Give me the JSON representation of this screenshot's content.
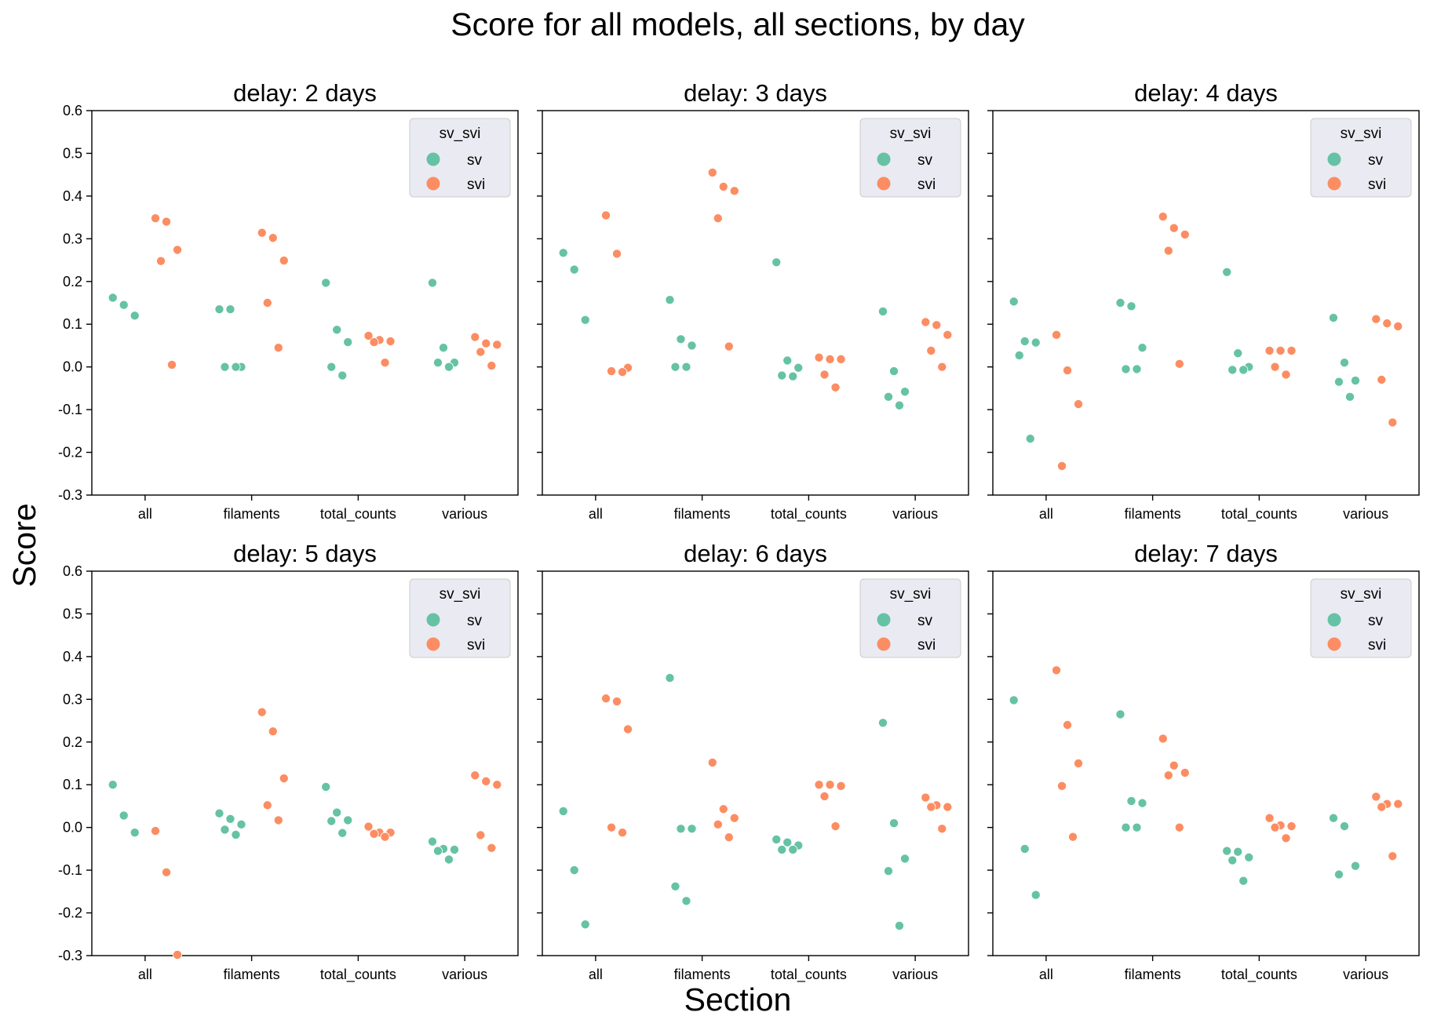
{
  "figure": {
    "title": "Score for all models, all sections, by day",
    "xlabel": "Section",
    "ylabel": "Score"
  },
  "legend": {
    "title": "sv_svi",
    "entries": [
      "sv",
      "svi"
    ],
    "placement": "top-right"
  },
  "colors": {
    "sv": "#66c2a5",
    "svi": "#fc8d62",
    "legend_bg": "#eaeaf2",
    "legend_edge": "#cccccc"
  },
  "chart_data": [
    {
      "type": "scatter",
      "title": "delay: 2 days",
      "categories": [
        "all",
        "filaments",
        "total_counts",
        "various"
      ],
      "ylim": [
        -0.3,
        0.6
      ],
      "yticks": [
        "-0.3",
        "-0.2",
        "-0.1",
        "0.0",
        "0.1",
        "0.2",
        "0.3",
        "0.4",
        "0.5",
        "0.6"
      ],
      "grid": false,
      "series": [
        {
          "name": "sv",
          "values": [
            [
              0.162,
              0.145,
              0.12
            ],
            [
              0.135,
              0.135,
              0.0,
              0.0,
              0.0
            ],
            [
              0.197,
              0.087,
              0.058,
              0.0,
              -0.02
            ],
            [
              0.197,
              0.045,
              0.01,
              0.01,
              0.0
            ]
          ]
        },
        {
          "name": "svi",
          "values": [
            [
              0.348,
              0.34,
              0.274,
              0.248,
              0.005
            ],
            [
              0.314,
              0.302,
              0.249,
              0.15,
              0.045
            ],
            [
              0.073,
              0.063,
              0.06,
              0.058,
              0.01
            ],
            [
              0.07,
              0.055,
              0.052,
              0.035,
              0.003
            ]
          ]
        }
      ]
    },
    {
      "type": "scatter",
      "title": "delay: 3 days",
      "categories": [
        "all",
        "filaments",
        "total_counts",
        "various"
      ],
      "ylim": [
        -0.3,
        0.6
      ],
      "yticks": [
        "-0.3",
        "-0.2",
        "-0.1",
        "0.0",
        "0.1",
        "0.2",
        "0.3",
        "0.4",
        "0.5",
        "0.6"
      ],
      "grid": false,
      "series": [
        {
          "name": "sv",
          "values": [
            [
              0.267,
              0.228,
              0.11
            ],
            [
              0.157,
              0.065,
              0.05,
              0.0,
              0.0
            ],
            [
              0.245,
              0.015,
              -0.002,
              -0.02,
              -0.022
            ],
            [
              0.13,
              -0.01,
              -0.058,
              -0.07,
              -0.09
            ]
          ]
        },
        {
          "name": "svi",
          "values": [
            [
              0.355,
              0.265,
              -0.002,
              -0.01,
              -0.012
            ],
            [
              0.455,
              0.422,
              0.412,
              0.348,
              0.048
            ],
            [
              0.022,
              0.018,
              0.018,
              -0.018,
              -0.048
            ],
            [
              0.105,
              0.098,
              0.075,
              0.038,
              0.0
            ]
          ]
        }
      ]
    },
    {
      "type": "scatter",
      "title": "delay: 4 days",
      "categories": [
        "all",
        "filaments",
        "total_counts",
        "various"
      ],
      "ylim": [
        -0.3,
        0.6
      ],
      "yticks": [
        "-0.3",
        "-0.2",
        "-0.1",
        "0.0",
        "0.1",
        "0.2",
        "0.3",
        "0.4",
        "0.5",
        "0.6"
      ],
      "grid": false,
      "series": [
        {
          "name": "sv",
          "values": [
            [
              0.153,
              0.06,
              0.057,
              0.027,
              -0.168
            ],
            [
              0.15,
              0.142,
              0.045,
              -0.005,
              -0.005
            ],
            [
              0.222,
              0.032,
              0.0,
              -0.007,
              -0.007
            ],
            [
              0.115,
              0.01,
              -0.032,
              -0.035,
              -0.07
            ]
          ]
        },
        {
          "name": "svi",
          "values": [
            [
              0.075,
              -0.008,
              -0.087,
              -0.232
            ],
            [
              0.352,
              0.325,
              0.31,
              0.272,
              0.007
            ],
            [
              0.038,
              0.038,
              0.038,
              0.0,
              -0.018
            ],
            [
              0.112,
              0.102,
              0.095,
              -0.03,
              -0.13
            ]
          ]
        }
      ]
    },
    {
      "type": "scatter",
      "title": "delay: 5 days",
      "categories": [
        "all",
        "filaments",
        "total_counts",
        "various"
      ],
      "ylim": [
        -0.3,
        0.6
      ],
      "yticks": [
        "-0.3",
        "-0.2",
        "-0.1",
        "0.0",
        "0.1",
        "0.2",
        "0.3",
        "0.4",
        "0.5",
        "0.6"
      ],
      "grid": false,
      "series": [
        {
          "name": "sv",
          "values": [
            [
              0.1,
              0.028,
              -0.012
            ],
            [
              0.033,
              0.02,
              0.007,
              -0.005,
              -0.017
            ],
            [
              0.095,
              0.035,
              0.017,
              0.015,
              -0.013
            ],
            [
              -0.033,
              -0.05,
              -0.052,
              -0.055,
              -0.075
            ]
          ]
        },
        {
          "name": "svi",
          "values": [
            [
              -0.008,
              -0.105,
              -0.298
            ],
            [
              0.27,
              0.225,
              0.115,
              0.052,
              0.017
            ],
            [
              0.002,
              -0.012,
              -0.012,
              -0.015,
              -0.022
            ],
            [
              0.122,
              0.108,
              0.1,
              -0.018,
              -0.048
            ]
          ]
        }
      ]
    },
    {
      "type": "scatter",
      "title": "delay: 6 days",
      "categories": [
        "all",
        "filaments",
        "total_counts",
        "various"
      ],
      "ylim": [
        -0.3,
        0.6
      ],
      "yticks": [
        "-0.3",
        "-0.2",
        "-0.1",
        "0.0",
        "0.1",
        "0.2",
        "0.3",
        "0.4",
        "0.5",
        "0.6"
      ],
      "grid": false,
      "series": [
        {
          "name": "sv",
          "values": [
            [
              0.038,
              -0.1,
              -0.227
            ],
            [
              0.35,
              -0.003,
              -0.003,
              -0.138,
              -0.172
            ],
            [
              -0.028,
              -0.035,
              -0.042,
              -0.052,
              -0.052
            ],
            [
              0.245,
              0.01,
              -0.073,
              -0.102,
              -0.23
            ]
          ]
        },
        {
          "name": "svi",
          "values": [
            [
              0.302,
              0.295,
              0.23,
              0.0,
              -0.012
            ],
            [
              0.152,
              0.043,
              0.022,
              0.007,
              -0.023
            ],
            [
              0.1,
              0.1,
              0.097,
              0.073,
              0.003
            ],
            [
              0.07,
              0.052,
              0.048,
              0.048,
              -0.003
            ]
          ]
        }
      ]
    },
    {
      "type": "scatter",
      "title": "delay: 7 days",
      "categories": [
        "all",
        "filaments",
        "total_counts",
        "various"
      ],
      "ylim": [
        -0.3,
        0.6
      ],
      "yticks": [
        "-0.3",
        "-0.2",
        "-0.1",
        "0.0",
        "0.1",
        "0.2",
        "0.3",
        "0.4",
        "0.5",
        "0.6"
      ],
      "grid": false,
      "series": [
        {
          "name": "sv",
          "values": [
            [
              0.298,
              -0.05,
              -0.158
            ],
            [
              0.265,
              0.062,
              0.057,
              0.0,
              0.0
            ],
            [
              -0.055,
              -0.057,
              -0.07,
              -0.077,
              -0.125
            ],
            [
              0.022,
              0.003,
              -0.09,
              -0.11
            ]
          ]
        },
        {
          "name": "svi",
          "values": [
            [
              0.368,
              0.24,
              0.15,
              0.097,
              -0.022
            ],
            [
              0.208,
              0.145,
              0.128,
              0.122,
              0.0
            ],
            [
              0.022,
              0.005,
              0.003,
              0.0,
              -0.025
            ],
            [
              0.072,
              0.055,
              0.055,
              0.048,
              -0.067
            ]
          ]
        }
      ]
    }
  ]
}
